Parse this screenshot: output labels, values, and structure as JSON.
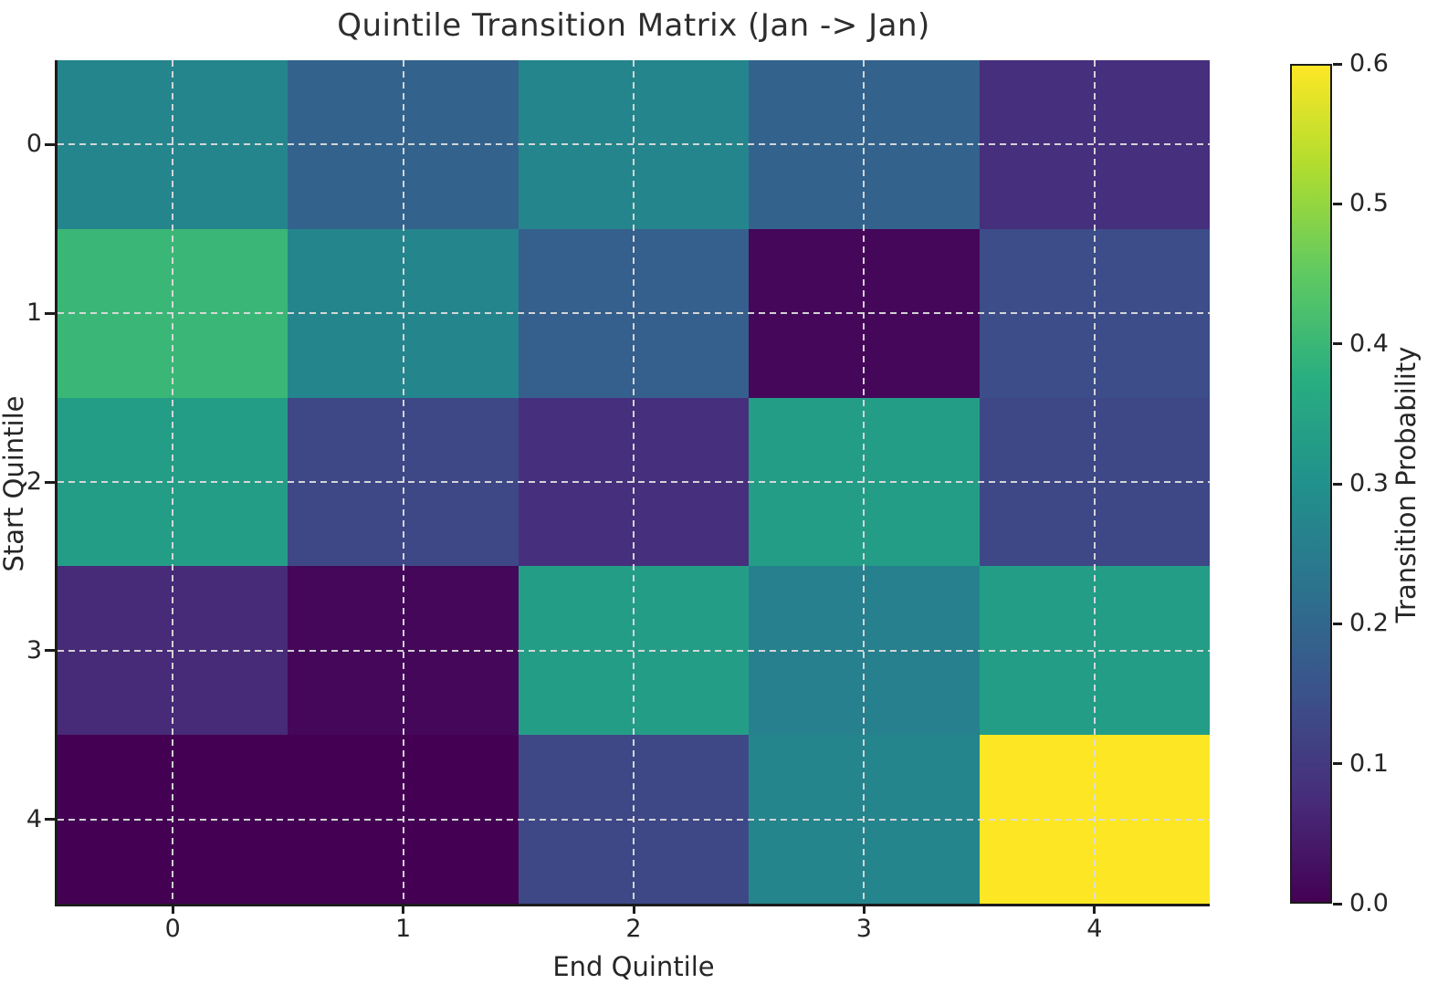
{
  "title": "Quintile Transition Matrix (Jan -> Jan)",
  "x_axis": {
    "label": "End Quintile",
    "ticks": [
      "0",
      "1",
      "2",
      "3",
      "4"
    ]
  },
  "y_axis": {
    "label": "Start Quintile",
    "ticks": [
      "0",
      "1",
      "2",
      "3",
      "4"
    ]
  },
  "colorbar": {
    "label": "Transition Probability",
    "ticks": [
      "0.0",
      "0.1",
      "0.2",
      "0.3",
      "0.4",
      "0.5",
      "0.6"
    ],
    "min": 0.0,
    "max": 0.6
  },
  "colors": {
    "spine": "#1c1c1c",
    "grid_dash": "#dbdbdb",
    "text": "#262626",
    "title_text": "#2d2d2d",
    "viridis_stops": [
      "#440154",
      "#472d7b",
      "#3b528b",
      "#2c728e",
      "#21918c",
      "#28ae80",
      "#5ec962",
      "#addc30",
      "#fde725"
    ]
  },
  "chart_data": {
    "type": "heatmap",
    "title": "Quintile Transition Matrix (Jan -> Jan)",
    "xlabel": "End Quintile",
    "ylabel": "Start Quintile",
    "colorbar_label": "Transition Probability",
    "x_categories": [
      0,
      1,
      2,
      3,
      4
    ],
    "y_categories": [
      0,
      1,
      2,
      3,
      4
    ],
    "values": [
      [
        0.27,
        0.19,
        0.27,
        0.19,
        0.08
      ],
      [
        0.4,
        0.27,
        0.18,
        0.01,
        0.14
      ],
      [
        0.33,
        0.13,
        0.08,
        0.33,
        0.13
      ],
      [
        0.07,
        0.01,
        0.33,
        0.26,
        0.33
      ],
      [
        0.0,
        0.0,
        0.13,
        0.27,
        0.6
      ]
    ],
    "vmin": 0.0,
    "vmax": 0.6,
    "colormap": "viridis",
    "grid": "dashed, at tick positions (cell centers)",
    "legend_position": "colorbar-right"
  }
}
